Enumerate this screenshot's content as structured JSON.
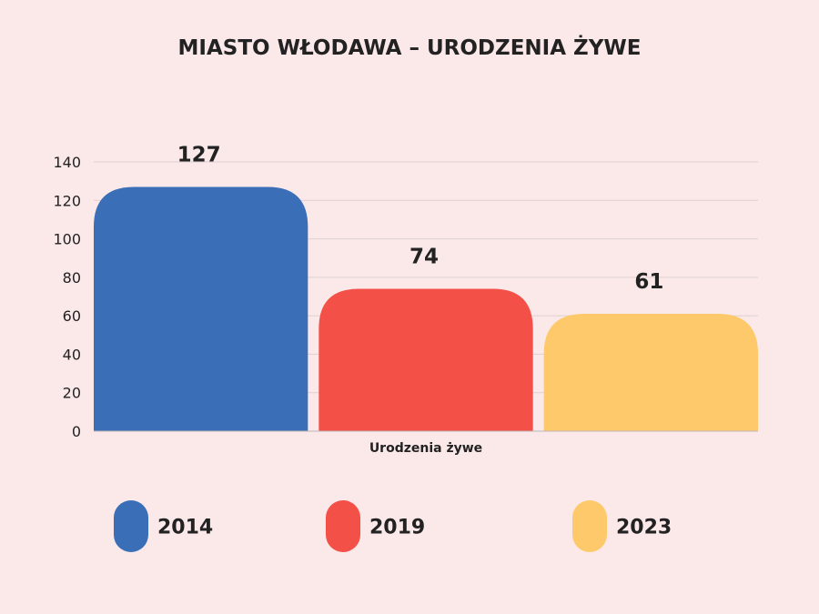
{
  "chart_data": {
    "type": "bar",
    "title": "MIASTO WŁODAWA – URODZENIA ŻYWE",
    "xlabel": "Urodzenia żywe",
    "ylabel": "",
    "ylim": [
      0,
      140
    ],
    "yticks": [
      0,
      20,
      40,
      60,
      80,
      100,
      120,
      140
    ],
    "grid": true,
    "legend_position": "bottom",
    "categories": [
      "Urodzenia żywe"
    ],
    "series": [
      {
        "name": "2014",
        "values": [
          127
        ],
        "color": "#3a6fb7"
      },
      {
        "name": "2019",
        "values": [
          74
        ],
        "color": "#f35048"
      },
      {
        "name": "2023",
        "values": [
          61
        ],
        "color": "#fdc96a"
      }
    ]
  }
}
